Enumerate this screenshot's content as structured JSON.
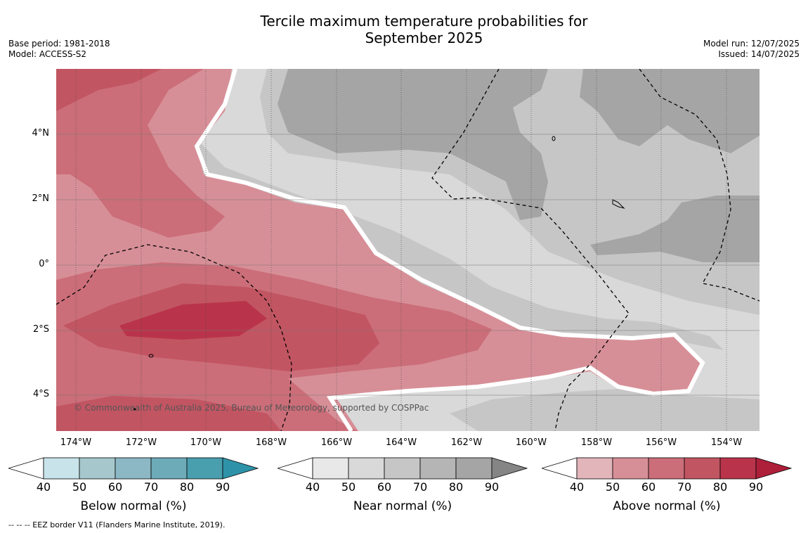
{
  "title_line1": "Tercile maximum temperature probabilities for",
  "title_line2": "September 2025",
  "base_period": "Base period: 1981-2018",
  "model": "Model: ACCESS-S2",
  "model_run": "Model run: 12/07/2025",
  "issued": "Issued: 14/07/2025",
  "copyright": "© Commonwealth of Australia 2025, Bureau of Meteorology, supported by COSPPac",
  "lat_labels": [
    "4°N",
    "2°N",
    "0°",
    "2°S",
    "4°S"
  ],
  "lon_labels": [
    "174°W",
    "172°W",
    "170°W",
    "168°W",
    "166°W",
    "164°W",
    "162°W",
    "160°W",
    "158°W",
    "156°W",
    "154°W"
  ],
  "colorbars": [
    {
      "caption": "Below normal (%)",
      "ticks": [
        "40",
        "50",
        "60",
        "70",
        "80",
        "90"
      ],
      "colors": [
        "#c8e3ea",
        "#a6c8cc",
        "#8bb8c4",
        "#6eabb8",
        "#4a9fae",
        "#2e93a8"
      ]
    },
    {
      "caption": "Near normal (%)",
      "ticks": [
        "40",
        "50",
        "60",
        "70",
        "80",
        "90"
      ],
      "colors": [
        "#e8e8e8",
        "#d9d9d9",
        "#c6c6c6",
        "#b5b5b5",
        "#a5a5a5",
        "#858585"
      ]
    },
    {
      "caption": "Above normal (%)",
      "ticks": [
        "40",
        "50",
        "60",
        "70",
        "80",
        "90"
      ],
      "colors": [
        "#e2b5ba",
        "#d78f97",
        "#cb6e79",
        "#c25562",
        "#b9344a",
        "#ae1f3a"
      ]
    }
  ],
  "footnote": "--  --  -- EEZ border V11 (Flanders Marine Institute, 2019)."
}
